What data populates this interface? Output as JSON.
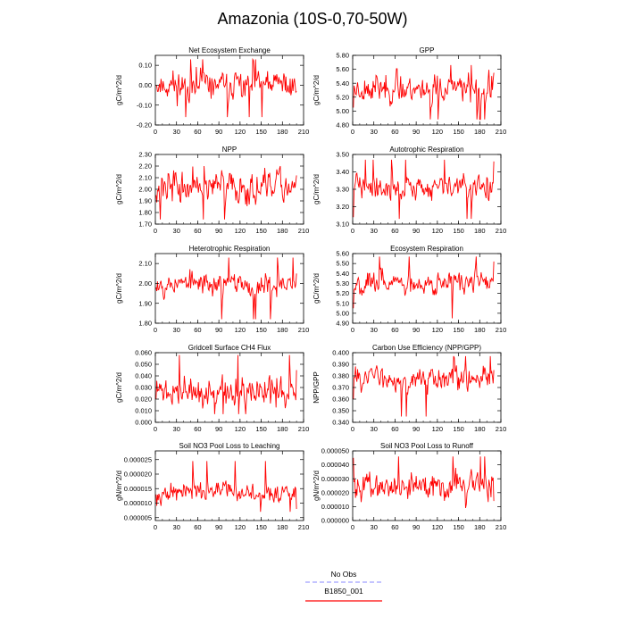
{
  "figure": {
    "title": "Amazonia (10S-0,70-50W)",
    "series_color": "#ff0000",
    "obs_color": "#8888ff"
  },
  "legend": {
    "items": [
      {
        "label": "No Obs",
        "color": "#8888ff",
        "style": "dashed"
      },
      {
        "label": "B1850_001",
        "color": "#ff0000",
        "style": "solid"
      }
    ]
  },
  "chart_data": [
    {
      "type": "line",
      "title": "Net Ecosystem Exchange",
      "ylabel": "gC/m^2/d",
      "xlim": [
        0,
        210
      ],
      "ylim": [
        -0.2,
        0.15
      ],
      "yticks": [
        -0.2,
        -0.1,
        0.0,
        0.1
      ],
      "ytick_labels": [
        "-0.20",
        "-0.10",
        "0.00",
        "0.10"
      ],
      "xticks": [
        0,
        30,
        60,
        90,
        120,
        150,
        180,
        210
      ],
      "xtick_labels": [
        "0",
        "30",
        "60",
        "90",
        "120",
        "150",
        "180",
        "210"
      ],
      "series": [
        {
          "name": "B1850_001",
          "start": 1,
          "baseline": 0.0,
          "amplitude": 0.07,
          "trend": 0.0,
          "low": -0.16,
          "high": 0.13,
          "seed": 11,
          "endpoints": {
            "first": 0.0,
            "last": -0.03
          }
        }
      ]
    },
    {
      "type": "line",
      "title": "GPP",
      "ylabel": "gC/m^2/d",
      "xlim": [
        0,
        210
      ],
      "ylim": [
        4.8,
        5.8
      ],
      "yticks": [
        4.8,
        5.0,
        5.2,
        5.4,
        5.6,
        5.8
      ],
      "ytick_labels": [
        "4.80",
        "5.00",
        "5.20",
        "5.40",
        "5.60",
        "5.80"
      ],
      "xticks": [
        0,
        30,
        60,
        90,
        120,
        150,
        180,
        210
      ],
      "xtick_labels": [
        "0",
        "30",
        "60",
        "90",
        "120",
        "150",
        "180",
        "210"
      ],
      "series": [
        {
          "name": "B1850_001",
          "start": 1,
          "baseline": 5.33,
          "amplitude": 0.18,
          "trend": 0.0,
          "low": 4.88,
          "high": 5.66,
          "seed": 23,
          "endpoints": {
            "first": 5.05,
            "last": 5.55
          }
        }
      ]
    },
    {
      "type": "line",
      "title": "NPP",
      "ylabel": "gC/m^2/d",
      "xlim": [
        0,
        210
      ],
      "ylim": [
        1.7,
        2.3
      ],
      "yticks": [
        1.7,
        1.8,
        1.9,
        2.0,
        2.1,
        2.2,
        2.3
      ],
      "ytick_labels": [
        "1.70",
        "1.80",
        "1.90",
        "2.00",
        "2.10",
        "2.20",
        "2.30"
      ],
      "xticks": [
        0,
        30,
        60,
        90,
        120,
        150,
        180,
        210
      ],
      "xtick_labels": [
        "0",
        "30",
        "60",
        "90",
        "120",
        "150",
        "180",
        "210"
      ],
      "series": [
        {
          "name": "B1850_001",
          "start": 1,
          "baseline": 2.02,
          "amplitude": 0.12,
          "trend": 0.0,
          "low": 1.74,
          "high": 2.2,
          "seed": 37,
          "endpoints": {
            "first": 1.95,
            "last": 2.12
          }
        }
      ]
    },
    {
      "type": "line",
      "title": "Autotrophic Respiration",
      "ylabel": "gC/m^2/d",
      "xlim": [
        0,
        210
      ],
      "ylim": [
        3.1,
        3.5
      ],
      "yticks": [
        3.1,
        3.2,
        3.3,
        3.4,
        3.5
      ],
      "ytick_labels": [
        "3.10",
        "3.20",
        "3.30",
        "3.40",
        "3.50"
      ],
      "xticks": [
        0,
        30,
        60,
        90,
        120,
        150,
        180,
        210
      ],
      "xtick_labels": [
        "0",
        "30",
        "60",
        "90",
        "120",
        "150",
        "180",
        "210"
      ],
      "series": [
        {
          "name": "B1850_001",
          "start": 1,
          "baseline": 3.31,
          "amplitude": 0.06,
          "trend": 0.0,
          "low": 3.13,
          "high": 3.47,
          "seed": 41,
          "endpoints": {
            "first": 3.14,
            "last": 3.46
          }
        }
      ]
    },
    {
      "type": "line",
      "title": "Heterotrophic Respiration",
      "ylabel": "gC/m^2/d",
      "xlim": [
        0,
        210
      ],
      "ylim": [
        1.8,
        2.15
      ],
      "yticks": [
        1.8,
        1.9,
        2.0,
        2.1
      ],
      "ytick_labels": [
        "1.80",
        "1.90",
        "2.00",
        "2.10"
      ],
      "xticks": [
        0,
        30,
        60,
        90,
        120,
        150,
        180,
        210
      ],
      "xtick_labels": [
        "0",
        "30",
        "60",
        "90",
        "120",
        "150",
        "180",
        "210"
      ],
      "series": [
        {
          "name": "B1850_001",
          "start": 1,
          "baseline": 2.0,
          "amplitude": 0.05,
          "trend": 0.0,
          "low": 1.82,
          "high": 2.13,
          "seed": 53,
          "endpoints": {
            "first": 1.98,
            "last": 2.05
          }
        }
      ]
    },
    {
      "type": "line",
      "title": "Ecosystem Respiration",
      "ylabel": "gC/m^2/d",
      "xlim": [
        0,
        210
      ],
      "ylim": [
        4.9,
        5.6
      ],
      "yticks": [
        4.9,
        5.0,
        5.1,
        5.2,
        5.3,
        5.4,
        5.5,
        5.6
      ],
      "ytick_labels": [
        "4.90",
        "5.00",
        "5.10",
        "5.20",
        "5.30",
        "5.40",
        "5.50",
        "5.60"
      ],
      "xticks": [
        0,
        30,
        60,
        90,
        120,
        150,
        180,
        210
      ],
      "xtick_labels": [
        "0",
        "30",
        "60",
        "90",
        "120",
        "150",
        "180",
        "210"
      ],
      "series": [
        {
          "name": "B1850_001",
          "start": 1,
          "baseline": 5.3,
          "amplitude": 0.1,
          "trend": 0.0,
          "low": 4.95,
          "high": 5.57,
          "seed": 67,
          "endpoints": {
            "first": 5.05,
            "last": 5.52
          }
        }
      ]
    },
    {
      "type": "line",
      "title": "Gridcell Surface CH4 Flux",
      "ylabel": "gC/m^2/d",
      "xlim": [
        0,
        210
      ],
      "ylim": [
        0.0,
        0.06
      ],
      "yticks": [
        0.0,
        0.01,
        0.02,
        0.03,
        0.04,
        0.05,
        0.06
      ],
      "ytick_labels": [
        "0.000",
        "0.010",
        "0.020",
        "0.030",
        "0.040",
        "0.050",
        "0.060"
      ],
      "xticks": [
        0,
        30,
        60,
        90,
        120,
        150,
        180,
        210
      ],
      "xtick_labels": [
        "0",
        "30",
        "60",
        "90",
        "120",
        "150",
        "180",
        "210"
      ],
      "series": [
        {
          "name": "B1850_001",
          "start": 1,
          "baseline": 0.026,
          "amplitude": 0.011,
          "trend": 0.0,
          "low": 0.007,
          "high": 0.058,
          "seed": 71,
          "endpoints": {
            "first": 0.02,
            "last": 0.045
          }
        }
      ]
    },
    {
      "type": "line",
      "title": "Carbon Use Efficiency (NPP/GPP)",
      "ylabel": "NPP/GPP",
      "xlim": [
        0,
        210
      ],
      "ylim": [
        0.34,
        0.4
      ],
      "yticks": [
        0.34,
        0.35,
        0.36,
        0.37,
        0.38,
        0.39,
        0.4
      ],
      "ytick_labels": [
        "0.340",
        "0.350",
        "0.360",
        "0.370",
        "0.380",
        "0.390",
        "0.400"
      ],
      "xticks": [
        0,
        30,
        60,
        90,
        120,
        150,
        180,
        210
      ],
      "xtick_labels": [
        "0",
        "30",
        "60",
        "90",
        "120",
        "150",
        "180",
        "210"
      ],
      "series": [
        {
          "name": "B1850_001",
          "start": 1,
          "baseline": 0.378,
          "amplitude": 0.009,
          "trend": 0.0,
          "low": 0.345,
          "high": 0.397,
          "seed": 83,
          "endpoints": {
            "first": 0.36,
            "last": 0.385
          }
        }
      ]
    },
    {
      "type": "line",
      "title": "Soil NO3 Pool Loss to Leaching",
      "ylabel": "gN/m^2/d",
      "xlim": [
        0,
        210
      ],
      "ylim": [
        4e-06,
        2.8e-05
      ],
      "yticks": [
        5e-06,
        1e-05,
        1.5e-05,
        2e-05,
        2.5e-05
      ],
      "ytick_labels": [
        "0.000005",
        "0.000010",
        "0.000015",
        "0.000020",
        "0.000025"
      ],
      "xticks": [
        0,
        30,
        60,
        90,
        120,
        150,
        180,
        210
      ],
      "xtick_labels": [
        "0",
        "30",
        "60",
        "90",
        "120",
        "150",
        "180",
        "210"
      ],
      "series": [
        {
          "name": "B1850_001",
          "start": 1,
          "baseline": 1.35e-05,
          "amplitude": 2.8e-06,
          "trend": 0.0,
          "low": 7e-06,
          "high": 2.45e-05,
          "seed": 97,
          "endpoints": {
            "first": 1.3e-05,
            "last": 8e-06
          }
        }
      ]
    },
    {
      "type": "line",
      "title": "Soil NO3 Pool Loss to Runoff",
      "ylabel": "gN/m^2/d",
      "xlim": [
        0,
        210
      ],
      "ylim": [
        0.0,
        5e-05
      ],
      "yticks": [
        0.0,
        1e-05,
        2e-05,
        3e-05,
        4e-05,
        5e-05
      ],
      "ytick_labels": [
        "0.000000",
        "0.000010",
        "0.000020",
        "0.000030",
        "0.000040",
        "0.000050"
      ],
      "xticks": [
        0,
        30,
        60,
        90,
        120,
        150,
        180,
        210
      ],
      "xtick_labels": [
        "0",
        "30",
        "60",
        "90",
        "120",
        "150",
        "180",
        "210"
      ],
      "series": [
        {
          "name": "B1850_001",
          "start": 1,
          "baseline": 2.5e-05,
          "amplitude": 8.5e-06,
          "trend": 0.0,
          "low": 9e-06,
          "high": 4.6e-05,
          "seed": 101,
          "endpoints": {
            "first": 4.5e-05,
            "last": 1.4e-05
          }
        }
      ]
    }
  ]
}
